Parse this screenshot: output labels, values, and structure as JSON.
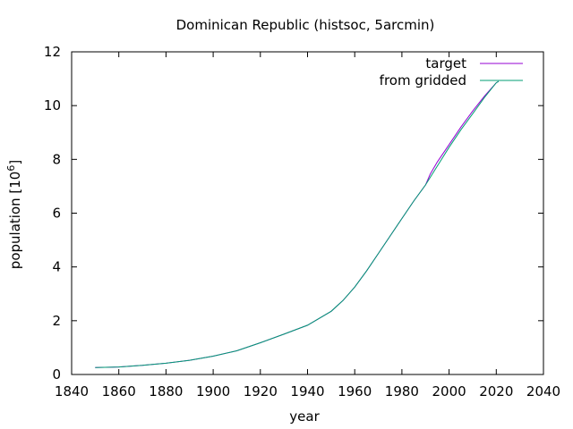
{
  "chart_data": {
    "type": "line",
    "title": "Dominican Republic (histsoc, 5arcmin)",
    "xlabel": "year",
    "ylabel_main": "population [10",
    "ylabel_sup": "6",
    "ylabel_end": "]",
    "xlim": [
      1840,
      2040
    ],
    "ylim": [
      0,
      12
    ],
    "xticks": [
      1840,
      1860,
      1880,
      1900,
      1920,
      1940,
      1960,
      1980,
      2000,
      2020,
      2040
    ],
    "yticks": [
      0,
      2,
      4,
      6,
      8,
      10,
      12
    ],
    "grid": false,
    "legend_position": "top-right",
    "series": [
      {
        "name": "target",
        "color": "#9400d3",
        "x": [
          1850,
          1860,
          1870,
          1880,
          1890,
          1900,
          1910,
          1920,
          1930,
          1940,
          1950,
          1955,
          1960,
          1965,
          1970,
          1975,
          1980,
          1985,
          1990,
          1992,
          1995,
          2000,
          2005,
          2010,
          2015,
          2020,
          2021
        ],
        "y": [
          0.26,
          0.28,
          0.34,
          0.42,
          0.53,
          0.68,
          0.88,
          1.18,
          1.5,
          1.83,
          2.35,
          2.75,
          3.25,
          3.85,
          4.5,
          5.15,
          5.8,
          6.45,
          7.05,
          7.45,
          7.9,
          8.55,
          9.2,
          9.8,
          10.35,
          10.85,
          10.9
        ]
      },
      {
        "name": "from gridded",
        "color": "#009e73",
        "x": [
          1850,
          1860,
          1870,
          1880,
          1890,
          1900,
          1910,
          1920,
          1930,
          1940,
          1950,
          1955,
          1960,
          1965,
          1970,
          1975,
          1980,
          1985,
          1990,
          1995,
          2000,
          2005,
          2010,
          2015,
          2020,
          2021
        ],
        "y": [
          0.26,
          0.28,
          0.34,
          0.42,
          0.53,
          0.68,
          0.88,
          1.18,
          1.5,
          1.83,
          2.35,
          2.75,
          3.25,
          3.85,
          4.5,
          5.15,
          5.8,
          6.45,
          7.05,
          7.75,
          8.45,
          9.1,
          9.7,
          10.3,
          10.85,
          10.9
        ]
      }
    ]
  }
}
